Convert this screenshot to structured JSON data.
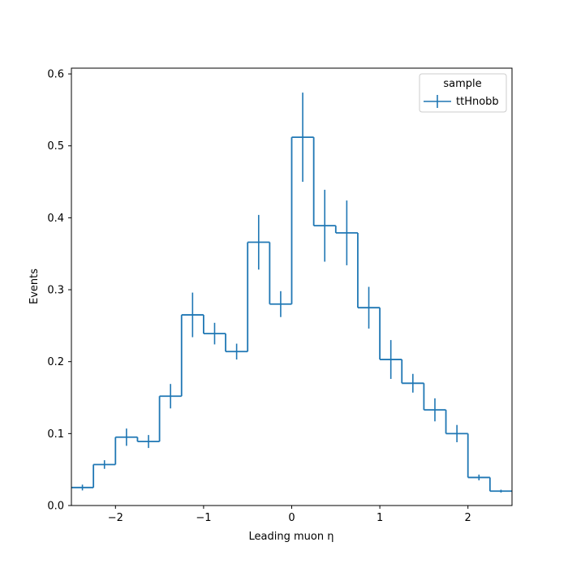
{
  "chart_data": {
    "type": "line",
    "style": "step-histogram-with-errorbars",
    "xlabel": "Leading muon η",
    "ylabel": "Events",
    "xlim": [
      -2.5,
      2.5
    ],
    "ylim": [
      0,
      0.608
    ],
    "xticks": [
      -2,
      -1,
      0,
      1,
      2
    ],
    "xtick_labels": [
      "−2",
      "−1",
      "0",
      "1",
      "2"
    ],
    "yticks": [
      0.0,
      0.1,
      0.2,
      0.3,
      0.4,
      0.5,
      0.6
    ],
    "ytick_labels": [
      "0.0",
      "0.1",
      "0.2",
      "0.3",
      "0.4",
      "0.5",
      "0.6"
    ],
    "grid": false,
    "legend": {
      "title": "sample",
      "placement": "top-right",
      "entries": [
        "ttHnobb"
      ]
    },
    "color": "#1f77b4",
    "bin_edges": [
      -2.5,
      -2.25,
      -2.0,
      -1.75,
      -1.5,
      -1.25,
      -1.0,
      -0.75,
      -0.5,
      -0.25,
      0.0,
      0.25,
      0.5,
      0.75,
      1.0,
      1.25,
      1.5,
      1.75,
      2.0,
      2.25,
      2.5
    ],
    "series": [
      {
        "name": "ttHnobb",
        "values": [
          0.025,
          0.057,
          0.095,
          0.089,
          0.152,
          0.265,
          0.239,
          0.214,
          0.366,
          0.28,
          0.512,
          0.389,
          0.379,
          0.275,
          0.203,
          0.17,
          0.133,
          0.1,
          0.039,
          0.02
        ],
        "errors": [
          0.004,
          0.006,
          0.012,
          0.009,
          0.017,
          0.031,
          0.015,
          0.011,
          0.038,
          0.018,
          0.062,
          0.05,
          0.045,
          0.029,
          0.027,
          0.013,
          0.016,
          0.012,
          0.004,
          0.002
        ]
      }
    ]
  }
}
